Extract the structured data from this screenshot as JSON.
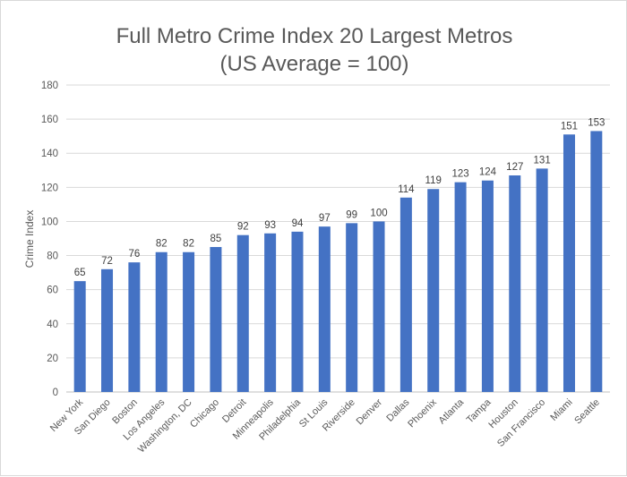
{
  "chart_data": {
    "type": "bar",
    "title": "Full Metro Crime Index 20 Largest Metros",
    "subtitle": "(US Average = 100)",
    "xlabel": "",
    "ylabel": "Crime Index",
    "ylim": [
      0,
      180
    ],
    "yticks": [
      0,
      20,
      40,
      60,
      80,
      100,
      120,
      140,
      160,
      180
    ],
    "grid": true,
    "legend": "none",
    "bar_color": "#4472c4",
    "categories": [
      "New York",
      "San Diego",
      "Boston",
      "Los Angeles",
      "Washington, DC",
      "Chicago",
      "Detroit",
      "Minneapolis",
      "Philadelphia",
      "St Louis",
      "Riverside",
      "Denver",
      "Dallas",
      "Phoenix",
      "Atlanta",
      "Tampa",
      "Houston",
      "San Francisco",
      "Miami",
      "Seattle"
    ],
    "values": [
      65,
      72,
      76,
      82,
      82,
      85,
      92,
      93,
      94,
      97,
      99,
      100,
      114,
      119,
      123,
      124,
      127,
      131,
      151,
      153
    ]
  }
}
